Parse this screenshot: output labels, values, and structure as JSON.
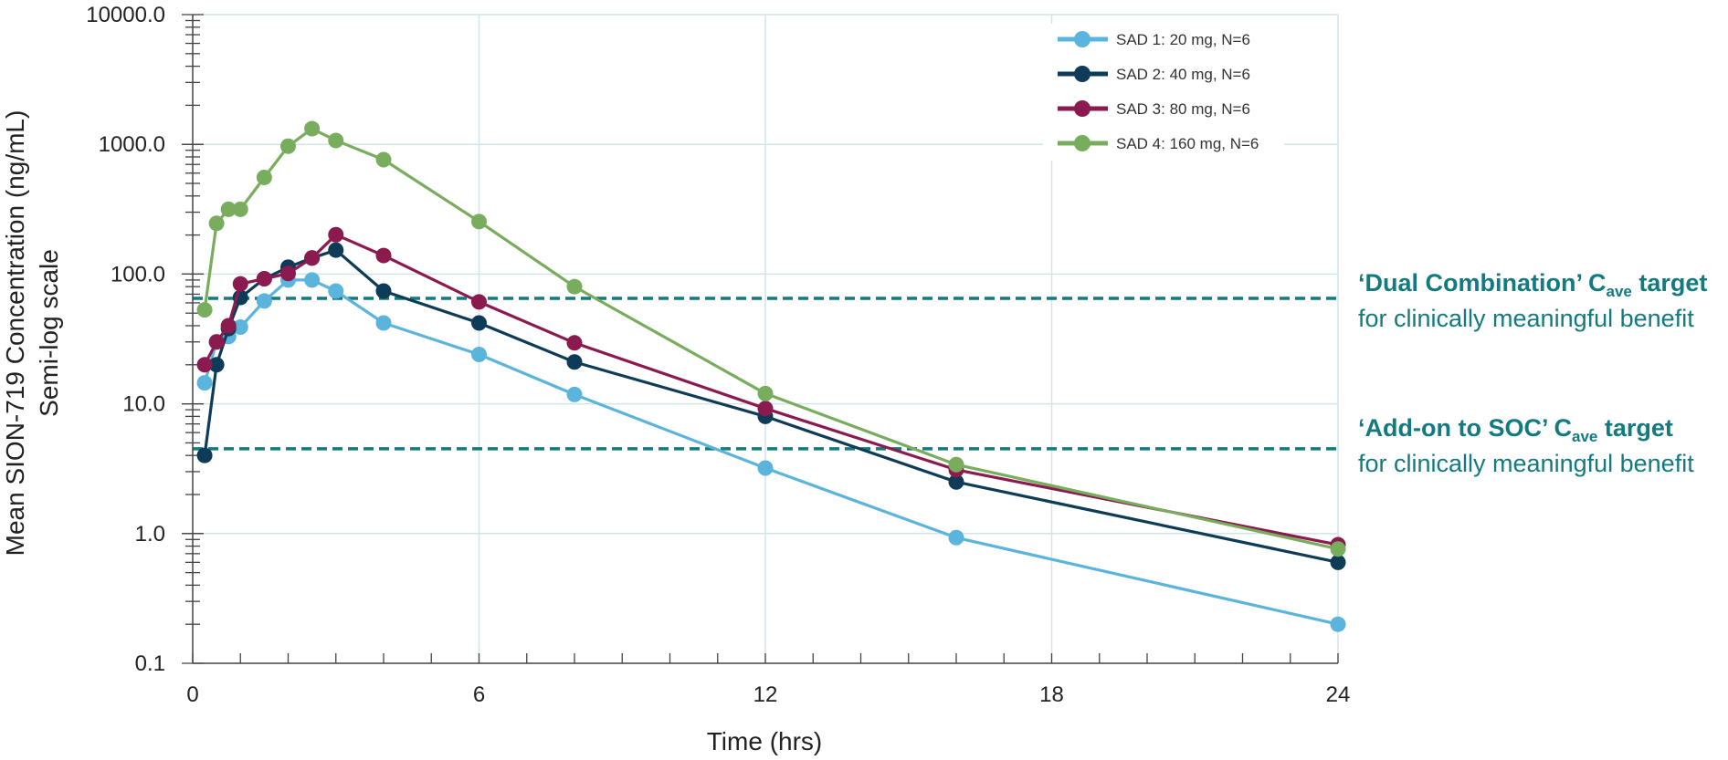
{
  "chart_data": {
    "type": "line",
    "x_scale": "linear",
    "y_scale": "log",
    "xlabel": "Time (hrs)",
    "ylabel": "Mean SION-719 Concentration (ng/mL)",
    "ylabel_sub": "Semi-log scale",
    "xlim": [
      0,
      24
    ],
    "ylim": [
      0.1,
      10000
    ],
    "x_ticks": [
      "0",
      "6",
      "12",
      "18",
      "24"
    ],
    "y_ticks": [
      "0.1",
      "1.0",
      "10.0",
      "100.0",
      "1000.0",
      "10000.0"
    ],
    "grid": true,
    "legend_position": "top-right",
    "series": [
      {
        "name": "SAD 1: 20 mg, N=6",
        "color": "#5ab4dc",
        "x": [
          0.25,
          0.5,
          0.75,
          1,
          1.5,
          2,
          2.5,
          3,
          4,
          6,
          8,
          12,
          16,
          24
        ],
        "y": [
          14.5,
          30,
          33,
          39,
          62,
          90,
          90,
          74,
          42,
          24,
          11.8,
          3.2,
          0.93,
          0.2
        ]
      },
      {
        "name": "SAD 2: 40 mg, N=6",
        "color": "#0e3b57",
        "x": [
          0.25,
          0.5,
          0.75,
          1,
          1.5,
          2,
          2.5,
          3,
          4,
          6,
          8,
          12,
          16,
          24
        ],
        "y": [
          4,
          20,
          38,
          66,
          92,
          113,
          133,
          153,
          74,
          42,
          21,
          8,
          2.5,
          0.6
        ]
      },
      {
        "name": "SAD 3: 80 mg, N=6",
        "color": "#8b1a4e",
        "x": [
          0.25,
          0.5,
          0.75,
          1,
          1.5,
          2,
          2.5,
          3,
          4,
          6,
          8,
          12,
          16,
          24
        ],
        "y": [
          20,
          30,
          40,
          84,
          92,
          101,
          133,
          201,
          139,
          61,
          29.5,
          9.2,
          3.1,
          0.82
        ]
      },
      {
        "name": "SAD 4: 160 mg, N=6",
        "color": "#78ad5e",
        "x": [
          0.25,
          0.5,
          0.75,
          1,
          1.5,
          2,
          2.5,
          3,
          4,
          6,
          8,
          12,
          16,
          24
        ],
        "y": [
          53,
          246,
          316,
          316,
          556,
          967,
          1320,
          1070,
          762,
          254,
          80,
          12,
          3.4,
          0.76
        ]
      }
    ],
    "target_lines": [
      {
        "value": 65,
        "color": "#137a7f",
        "label_bold_prefix": "‘Dual Combination’ C",
        "label_sub": "ave",
        "label_bold_suffix": " target",
        "label_line2": "for clinically meaningful benefit"
      },
      {
        "value": 4.5,
        "color": "#137a7f",
        "label_bold_prefix": "‘Add-on to SOC’ C",
        "label_sub": "ave",
        "label_bold_suffix": " target",
        "label_line2": "for clinically meaningful benefit"
      }
    ]
  }
}
